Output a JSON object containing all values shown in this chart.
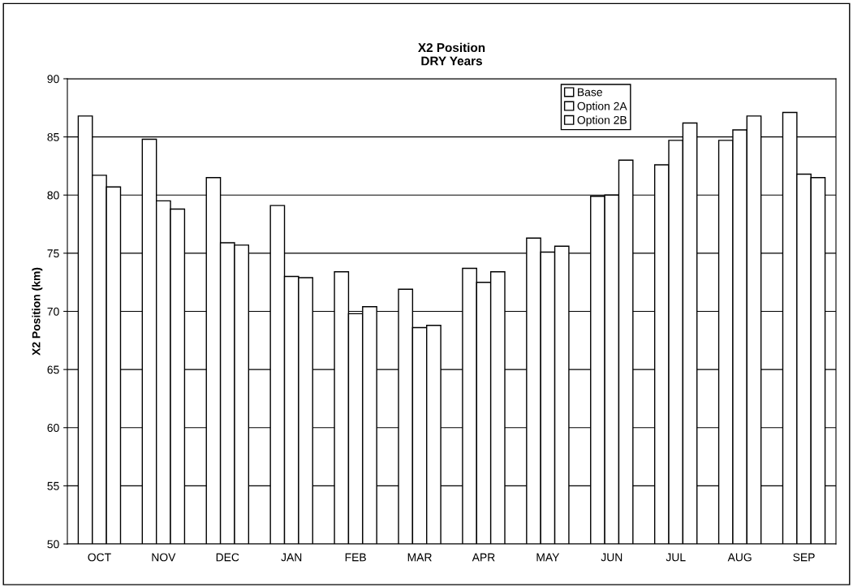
{
  "chart_data": {
    "type": "bar",
    "title": "X2 Position\nDRY Years",
    "ylabel": "X2 Position (km)",
    "categories": [
      "OCT",
      "NOV",
      "DEC",
      "JAN",
      "FEB",
      "MAR",
      "APR",
      "MAY",
      "JUN",
      "JUL",
      "AUG",
      "SEP"
    ],
    "series": [
      {
        "name": "Base",
        "color": "#ffffff",
        "values": [
          86.8,
          84.8,
          81.5,
          79.1,
          73.4,
          71.9,
          73.7,
          76.3,
          79.9,
          82.6,
          84.7,
          87.1
        ]
      },
      {
        "name": "Option 2A",
        "color": "#ffffff",
        "values": [
          81.7,
          79.5,
          75.9,
          73.0,
          69.8,
          68.6,
          72.5,
          75.1,
          80.0,
          84.7,
          85.6,
          81.8
        ]
      },
      {
        "name": "Option 2B",
        "color": "#ffffff",
        "values": [
          80.7,
          78.8,
          75.7,
          72.9,
          70.4,
          68.8,
          73.4,
          75.6,
          83.0,
          86.2,
          86.8,
          81.5
        ]
      }
    ],
    "ylim": [
      50,
      90
    ],
    "yticks": [
      50,
      55,
      60,
      65,
      70,
      75,
      80,
      85,
      90
    ],
    "grid": "y",
    "legend": "top right"
  }
}
